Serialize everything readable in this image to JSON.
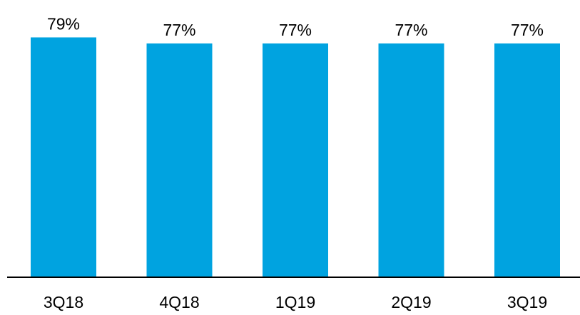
{
  "chart_data": {
    "type": "bar",
    "categories": [
      "3Q18",
      "4Q18",
      "1Q19",
      "2Q19",
      "3Q19"
    ],
    "values": [
      79,
      77,
      77,
      77,
      77
    ],
    "value_labels": [
      "79%",
      "77%",
      "77%",
      "77%",
      "77%"
    ],
    "bar_color": "#00A3E0",
    "axis_color": "#000000",
    "ylim": [
      0,
      100
    ],
    "grid": false,
    "legend": "none"
  }
}
